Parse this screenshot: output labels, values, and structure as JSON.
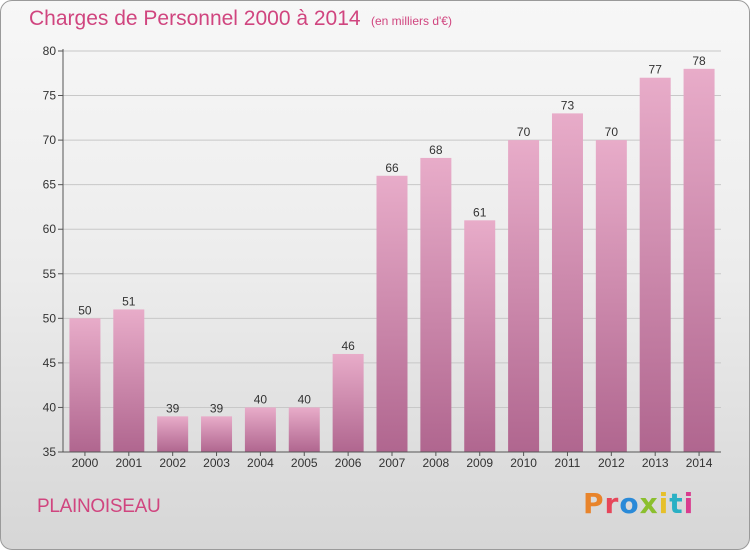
{
  "header": {
    "title": "Charges de Personnel 2000 à 2014",
    "subtitle": "(en milliers d'€)"
  },
  "footer": {
    "commune": "PLAINOISEAU",
    "brand": "Proxiti",
    "brand_colors": [
      "#e8842b",
      "#e6465a",
      "#2a8ad8",
      "#8bbf2e",
      "#e6c02a",
      "#2ab0c4",
      "#d93d8f"
    ]
  },
  "colors": {
    "bar_top": "#e8acc9",
    "bar_bottom": "#b0668f",
    "accent": "#d0457f"
  },
  "chart_data": {
    "type": "bar",
    "title": "Charges de Personnel 2000 à 2014",
    "subtitle": "(en milliers d'€)",
    "xlabel": "",
    "ylabel": "",
    "categories": [
      "2000",
      "2001",
      "2002",
      "2003",
      "2004",
      "2005",
      "2006",
      "2007",
      "2008",
      "2009",
      "2010",
      "2011",
      "2012",
      "2013",
      "2014"
    ],
    "values": [
      50,
      51,
      39,
      39,
      40,
      40,
      46,
      66,
      68,
      61,
      70,
      73,
      70,
      77,
      78
    ],
    "ylim": [
      35,
      80
    ],
    "yticks": [
      35,
      40,
      45,
      50,
      55,
      60,
      65,
      70,
      75,
      80
    ],
    "grid": true,
    "data_labels": true
  }
}
